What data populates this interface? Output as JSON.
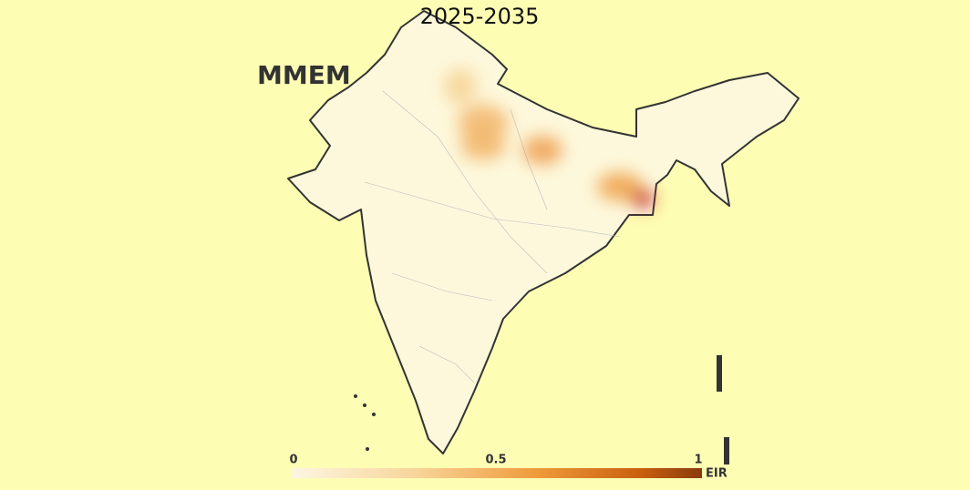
{
  "title": "2025-2035",
  "model": "MMEM",
  "colorbar": {
    "label": "EIR",
    "lim": [
      0,
      1
    ],
    "ticks": [
      0,
      0.5,
      1
    ]
  }
}
